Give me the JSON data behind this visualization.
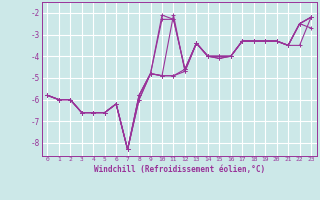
{
  "background_color": "#cce8e8",
  "grid_color": "#aacccc",
  "line_color": "#993399",
  "marker_color": "#993399",
  "xlabel": "Windchill (Refroidissement éolien,°C)",
  "xlabel_color": "#993399",
  "xlim": [
    -0.5,
    23.5
  ],
  "ylim": [
    -8.6,
    -1.5
  ],
  "xticks": [
    0,
    1,
    2,
    3,
    4,
    5,
    6,
    7,
    8,
    9,
    10,
    11,
    12,
    13,
    14,
    15,
    16,
    17,
    18,
    19,
    20,
    21,
    22,
    23
  ],
  "yticks": [
    -8,
    -7,
    -6,
    -5,
    -4,
    -3,
    -2
  ],
  "series": [
    {
      "x": [
        0,
        1,
        2,
        3,
        4,
        5,
        6,
        7,
        8,
        9,
        10,
        11,
        12,
        13,
        14,
        15,
        16,
        17,
        18,
        19,
        20,
        21,
        22,
        23
      ],
      "y": [
        -5.8,
        -6.0,
        -6.0,
        -6.6,
        -6.6,
        -6.6,
        -6.2,
        -8.3,
        -6.0,
        -4.8,
        -2.1,
        -2.3,
        -4.6,
        -3.4,
        -4.0,
        -4.1,
        -4.0,
        -3.3,
        -3.3,
        -3.3,
        -3.3,
        -3.5,
        -2.5,
        -2.2
      ]
    },
    {
      "x": [
        0,
        1,
        2,
        3,
        4,
        5,
        6,
        7,
        8,
        9,
        10,
        11,
        12,
        13,
        14,
        15,
        16,
        17,
        18,
        19,
        20,
        21,
        22,
        23
      ],
      "y": [
        -5.8,
        -6.0,
        -6.0,
        -6.6,
        -6.6,
        -6.6,
        -6.2,
        -8.3,
        -5.8,
        -4.8,
        -4.9,
        -4.9,
        -4.7,
        -3.4,
        -4.0,
        -4.1,
        -4.0,
        -3.3,
        -3.3,
        -3.3,
        -3.3,
        -3.5,
        -3.5,
        -2.2
      ]
    },
    {
      "x": [
        0,
        1,
        2,
        3,
        4,
        5,
        6,
        7,
        8,
        9,
        10,
        11,
        12,
        13,
        14,
        15,
        16,
        17,
        18,
        19,
        20,
        21,
        22,
        23
      ],
      "y": [
        -5.8,
        -6.0,
        -6.0,
        -6.6,
        -6.6,
        -6.6,
        -6.2,
        -8.3,
        -5.8,
        -4.8,
        -4.9,
        -2.1,
        -4.7,
        -3.4,
        -4.0,
        -4.0,
        -4.0,
        -3.3,
        -3.3,
        -3.3,
        -3.3,
        -3.5,
        -2.5,
        -2.7
      ]
    },
    {
      "x": [
        0,
        1,
        2,
        3,
        4,
        5,
        6,
        7,
        8,
        9,
        10,
        11,
        12,
        13,
        14,
        15,
        16,
        17,
        18,
        19,
        20,
        21,
        22,
        23
      ],
      "y": [
        -5.8,
        -6.0,
        -6.0,
        -6.6,
        -6.6,
        -6.6,
        -6.2,
        -8.3,
        -6.0,
        -4.8,
        -2.3,
        -2.3,
        -4.6,
        -3.4,
        -4.0,
        -4.0,
        -4.0,
        -3.3,
        -3.3,
        -3.3,
        -3.3,
        -3.5,
        -2.5,
        -2.2
      ]
    },
    {
      "x": [
        0,
        1,
        2,
        3,
        4,
        5,
        6,
        7,
        8,
        9,
        10,
        11,
        12,
        13,
        14,
        15,
        16,
        17,
        18,
        19,
        20,
        21,
        22,
        23
      ],
      "y": [
        -5.8,
        -6.0,
        -6.0,
        -6.6,
        -6.6,
        -6.6,
        -6.2,
        -8.3,
        -5.8,
        -4.8,
        -4.9,
        -4.9,
        -4.6,
        -3.4,
        -4.0,
        -4.0,
        -4.0,
        -3.3,
        -3.3,
        -3.3,
        -3.3,
        -3.5,
        -2.5,
        -2.2
      ]
    }
  ]
}
